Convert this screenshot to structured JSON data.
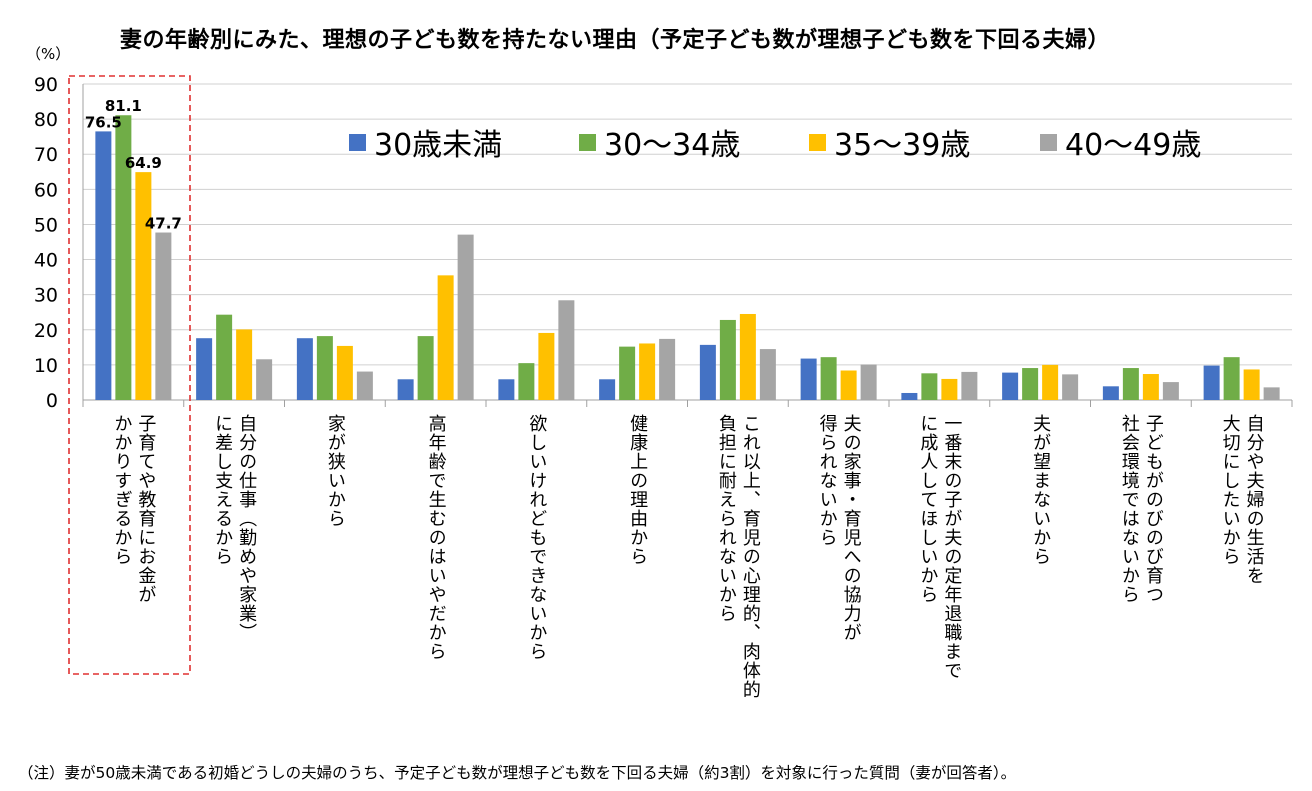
{
  "title": "妻の年齢別にみた、理想の子ども数を持たない理由（予定子ども数が理想子ども数を下回る夫婦）",
  "unit_label": "（%）",
  "note": "（注）妻が50歳未満である初婚どうしの夫婦のうち、予定子ども数が理想子ども数を下回る夫婦（約3割）を対象に行った質問（妻が回答者）。",
  "legend": {
    "s0": "30歳未満",
    "s1": "30～34歳",
    "s2": "35～39歳",
    "s3": "40～49歳"
  },
  "categories": [
    {
      "lines": [
        "子育てや教育にお金が",
        "かかりすぎるから"
      ]
    },
    {
      "lines": [
        "自分の仕事（勤めや家業）",
        "に差し支えるから"
      ]
    },
    {
      "lines": [
        "家が狭いから"
      ]
    },
    {
      "lines": [
        "高年齢で生むのはいやだから"
      ]
    },
    {
      "lines": [
        "欲しいけれどもできないから"
      ]
    },
    {
      "lines": [
        "健康上の理由から"
      ]
    },
    {
      "lines": [
        "これ以上、育児の心理的、肉体的",
        "負担に耐えられないから"
      ]
    },
    {
      "lines": [
        "夫の家事・育児への協力が",
        "得られないから"
      ]
    },
    {
      "lines": [
        "一番末の子が夫の定年退職まで",
        "に成人してほしいから"
      ]
    },
    {
      "lines": [
        "夫が望まないから"
      ]
    },
    {
      "lines": [
        "子どもがのびのび育つ",
        "社会環境ではないから"
      ]
    },
    {
      "lines": [
        "自分や夫婦の生活を",
        "大切にしたいから"
      ]
    }
  ],
  "chart_data": {
    "type": "bar",
    "title": "妻の年齢別にみた、理想の子ども数を持たない理由（予定子ども数が理想子ども数を下回る夫婦）",
    "ylabel": "（%）",
    "ylim": [
      0,
      90
    ],
    "yticks": [
      0,
      10,
      20,
      30,
      40,
      50,
      60,
      70,
      80,
      90
    ],
    "grid": true,
    "legend_position": "top-right",
    "categories": [
      "子育てや教育にお金がかかりすぎるから",
      "自分の仕事（勤めや家業）に差し支えるから",
      "家が狭いから",
      "高年齢で生むのはいやだから",
      "欲しいけれどもできないから",
      "健康上の理由から",
      "これ以上、育児の心理的、肉体的負担に耐えられないから",
      "夫の家事・育児への協力が得られないから",
      "一番末の子が夫の定年退職までに成人してほしいから",
      "夫が望まないから",
      "子どもがのびのび育つ社会環境ではないから",
      "自分や夫婦の生活を大切にしたいから"
    ],
    "series": [
      {
        "name": "30歳未満",
        "color": "#4472C4",
        "values": [
          76.5,
          17.6,
          17.6,
          5.9,
          5.9,
          5.9,
          15.7,
          11.8,
          2.0,
          7.8,
          3.9,
          9.8
        ]
      },
      {
        "name": "30～34歳",
        "color": "#70AD47",
        "values": [
          81.1,
          24.3,
          18.2,
          18.2,
          10.5,
          15.2,
          22.8,
          12.2,
          7.6,
          9.1,
          9.1,
          12.2
        ]
      },
      {
        "name": "35～39歳",
        "color": "#FFC000",
        "values": [
          64.9,
          20.1,
          15.4,
          35.5,
          19.1,
          16.1,
          24.5,
          8.4,
          6.0,
          10.0,
          7.4,
          8.7
        ]
      },
      {
        "name": "40～49歳",
        "color": "#A5A5A5",
        "values": [
          47.7,
          11.6,
          8.1,
          47.1,
          28.4,
          17.4,
          14.5,
          10.1,
          8.0,
          7.3,
          5.1,
          3.6
        ]
      }
    ],
    "data_labels": [
      {
        "series": 0,
        "category": 0,
        "text": "76.5"
      },
      {
        "series": 1,
        "category": 0,
        "text": "81.1"
      },
      {
        "series": 2,
        "category": 0,
        "text": "64.9"
      },
      {
        "series": 3,
        "category": 0,
        "text": "47.7"
      }
    ],
    "highlight_category": 0
  }
}
